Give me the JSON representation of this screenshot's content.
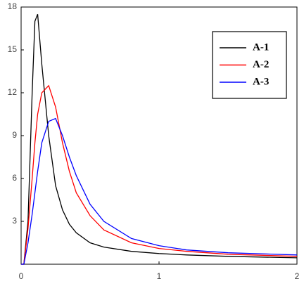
{
  "chart_data": {
    "type": "line",
    "x": [
      0,
      0.02,
      0.05,
      0.08,
      0.1,
      0.12,
      0.15,
      0.2,
      0.25,
      0.3,
      0.35,
      0.4,
      0.5,
      0.6,
      0.8,
      1.0,
      1.2,
      1.5,
      2.0
    ],
    "series": [
      {
        "name": "A-1",
        "color": "#000000",
        "values": [
          0,
          0,
          3,
          12,
          17,
          17.5,
          14,
          9,
          5.5,
          3.8,
          2.8,
          2.2,
          1.5,
          1.2,
          0.9,
          0.75,
          0.65,
          0.55,
          0.45
        ]
      },
      {
        "name": "A-2",
        "color": "#ff0000",
        "values": [
          0,
          0,
          2.5,
          6,
          8.5,
          10.5,
          12,
          12.5,
          11,
          8.5,
          6.5,
          5,
          3.4,
          2.4,
          1.5,
          1.1,
          0.9,
          0.7,
          0.55
        ]
      },
      {
        "name": "A-3",
        "color": "#0000ff",
        "values": [
          0,
          0,
          1.5,
          3.5,
          5,
          6.5,
          8.5,
          10,
          10.2,
          9,
          7.5,
          6.2,
          4.2,
          3.0,
          1.8,
          1.3,
          1.0,
          0.8,
          0.65
        ]
      }
    ],
    "xlim": [
      0,
      2
    ],
    "xticks": [
      0,
      1,
      2
    ],
    "ylim": [
      0,
      18
    ],
    "yticks": [
      3,
      6,
      9,
      12,
      15,
      18
    ],
    "legend": "upper-right"
  }
}
